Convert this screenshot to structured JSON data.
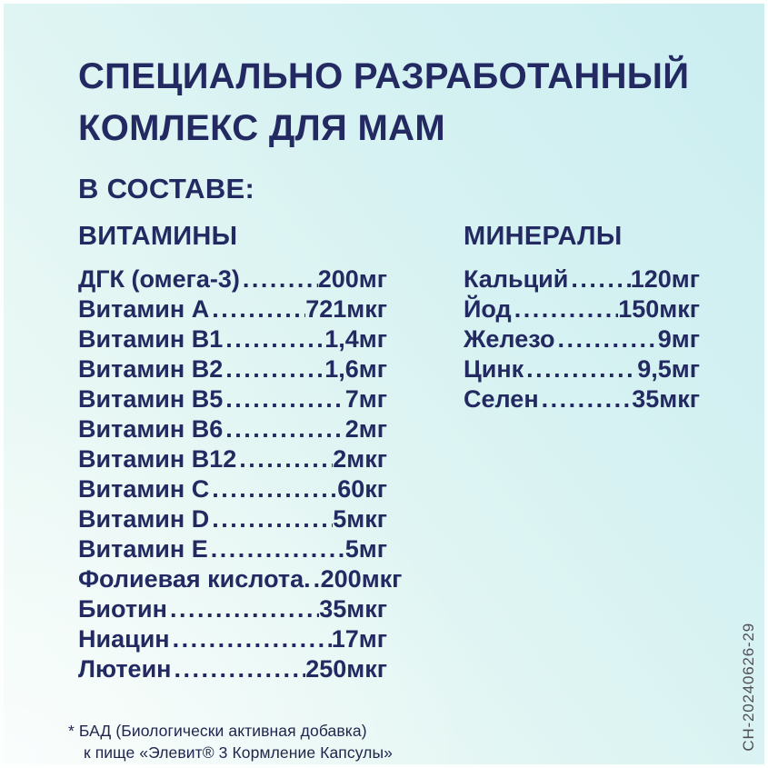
{
  "page": {
    "title_line1": "СПЕЦИАЛЬНО РАЗРАБОТАННЫЙ",
    "title_line2": "КОМЛЕКС ДЛЯ МАМ",
    "section_heading": "В СОСТАВЕ:",
    "footnote_line1": "* БАД (Биологически активная добавка)",
    "footnote_line2": "к пище «Элевит®  3 Кормление Капсулы»",
    "vertical_code": "СН-20240626-29"
  },
  "colors": {
    "text_navy": "#232a62",
    "footnote_navy": "#20264d",
    "code_gray": "#4e4f58",
    "bg_cyan": "#cbeef1",
    "bg_light": "#f3fbf8"
  },
  "columns": [
    {
      "header": "ВИТАМИНЫ",
      "items": [
        {
          "label": "ДГК (омега-3)",
          "value": "200мг"
        },
        {
          "label": "Витамин А",
          "value": "721мкг"
        },
        {
          "label": "Витамин B1",
          "value": "1,4мг"
        },
        {
          "label": "Витамин B2",
          "value": "1,6мг"
        },
        {
          "label": "Витамин B5",
          "value": "7мг"
        },
        {
          "label": "Витамин B6",
          "value": "2мг"
        },
        {
          "label": "Витамин B12",
          "value": "2мкг"
        },
        {
          "label": "Витамин C",
          "value": "60кг"
        },
        {
          "label": "Витамин D",
          "value": "5мкг"
        },
        {
          "label": "Витамин E",
          "value": "5мг"
        },
        {
          "label": "Фолиевая кислота.",
          "value": "200мкг"
        },
        {
          "label": "Биотин",
          "value": "35мкг"
        },
        {
          "label": "Ниацин",
          "value": "17мг"
        },
        {
          "label": "Лютеин",
          "value": "250мкг"
        }
      ]
    },
    {
      "header": "МИНЕРАЛЫ",
      "items": [
        {
          "label": "Кальций",
          "value": "120мг"
        },
        {
          "label": "Йод",
          "value": "150мкг"
        },
        {
          "label": "Железо",
          "value": "9мг"
        },
        {
          "label": "Цинк",
          "value": "9,5мг"
        },
        {
          "label": "Селен",
          "value": "35мкг"
        }
      ]
    }
  ]
}
